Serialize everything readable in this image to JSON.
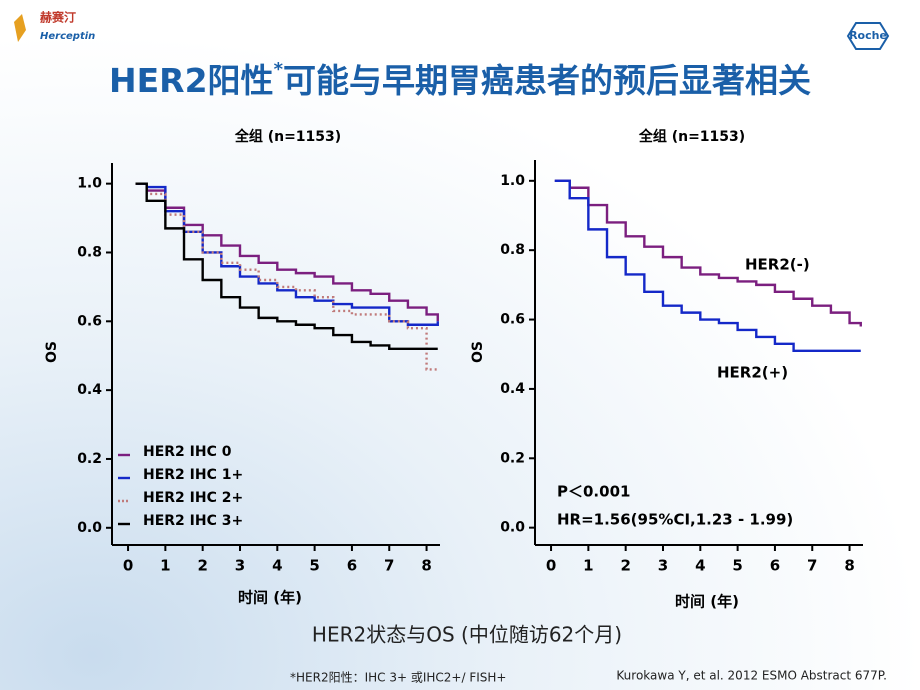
{
  "slide": {
    "title_main": "HER2阳性",
    "title_star": "*",
    "title_rest": "可能与早期胃癌患者的预后显著相关",
    "caption": "HER2状态与OS (中位随访62个月)",
    "footnote": "*HER2阳性：IHC 3+ 或IHC2+/ FISH+",
    "citation": "Kurokawa Y, et al. 2012 ESMO Abstract 677P.",
    "logo_cn": "赫赛汀",
    "logo_en": "Herceptin",
    "logo_roche": "Roche"
  },
  "chart_data": [
    {
      "type": "line",
      "step_style": "km",
      "title": "全组 (n=1153)",
      "x_label": "时间 (年)",
      "y_label": "OS",
      "legend": "lower left",
      "xlim": [
        -0.43,
        8.36
      ],
      "ylim": [
        -0.05,
        1.06
      ],
      "xticks": [
        0,
        1,
        2,
        3,
        4,
        5,
        6,
        7,
        8
      ],
      "yticks": [
        {
          "value": 0,
          "label": "0.0"
        },
        {
          "value": 0.2,
          "label": "0.2"
        },
        {
          "value": 0.4,
          "label": "0.4"
        },
        {
          "value": 0.6,
          "label": "0.6"
        },
        {
          "value": 0.8,
          "label": "0.8"
        },
        {
          "value": 1,
          "label": "1.0"
        }
      ],
      "x": [
        0.2,
        0.5,
        1,
        1.5,
        2,
        2.5,
        3,
        3.5,
        4,
        4.5,
        5,
        5.5,
        6,
        6.5,
        7,
        7.5,
        8,
        8.3
      ],
      "series": [
        {
          "name": "HER2 IHC 0",
          "color": "#7b1f7f",
          "line_style": "solid",
          "values": [
            1.0,
            0.98,
            0.93,
            0.88,
            0.85,
            0.82,
            0.79,
            0.77,
            0.75,
            0.74,
            0.73,
            0.71,
            0.69,
            0.68,
            0.66,
            0.64,
            0.62,
            0.6
          ]
        },
        {
          "name": "HER2 IHC 1+",
          "color": "#1428c8",
          "line_style": "solid",
          "values": [
            1.0,
            0.99,
            0.92,
            0.86,
            0.8,
            0.76,
            0.73,
            0.71,
            0.69,
            0.67,
            0.66,
            0.65,
            0.64,
            0.64,
            0.6,
            0.59,
            0.59,
            0.6
          ]
        },
        {
          "name": "HER2 IHC 2+",
          "color": "#c07a7a",
          "line_style": "dotted",
          "values": [
            1.0,
            0.97,
            0.91,
            0.86,
            0.8,
            0.77,
            0.75,
            0.72,
            0.7,
            0.69,
            0.67,
            0.63,
            0.62,
            0.62,
            0.6,
            0.58,
            0.46,
            0.46
          ]
        },
        {
          "name": "HER2 IHC 3+",
          "color": "#000000",
          "line_style": "solid",
          "values": [
            1.0,
            0.95,
            0.87,
            0.78,
            0.72,
            0.67,
            0.64,
            0.61,
            0.6,
            0.59,
            0.58,
            0.56,
            0.54,
            0.53,
            0.52,
            0.52,
            0.52,
            0.52
          ]
        }
      ]
    },
    {
      "type": "line",
      "step_style": "km",
      "title": "全组 (n=1153)",
      "x_label": "时间 (年)",
      "y_label": "OS",
      "legend": "direct",
      "xlim": [
        -0.43,
        8.36
      ],
      "ylim": [
        -0.05,
        1.06
      ],
      "xticks": [
        0,
        1,
        2,
        3,
        4,
        5,
        6,
        7,
        8
      ],
      "yticks": [
        {
          "value": 0,
          "label": "0.0"
        },
        {
          "value": 0.2,
          "label": "0.2"
        },
        {
          "value": 0.4,
          "label": "0.4"
        },
        {
          "value": 0.6,
          "label": "0.6"
        },
        {
          "value": 0.8,
          "label": "0.8"
        },
        {
          "value": 1,
          "label": "1.0"
        }
      ],
      "x": [
        0.1,
        0.5,
        1,
        1.5,
        2,
        2.5,
        3,
        3.5,
        4,
        4.5,
        5,
        5.5,
        6,
        6.5,
        7,
        7.5,
        8,
        8.3
      ],
      "series": [
        {
          "name": "HER2(-)",
          "color": "#7b1f7f",
          "line_style": "solid",
          "values": [
            1.0,
            0.98,
            0.93,
            0.88,
            0.84,
            0.81,
            0.78,
            0.75,
            0.73,
            0.72,
            0.71,
            0.7,
            0.68,
            0.66,
            0.64,
            0.62,
            0.59,
            0.58
          ]
        },
        {
          "name": "HER2(+)",
          "color": "#1428c8",
          "line_style": "solid",
          "values": [
            1.0,
            0.95,
            0.86,
            0.78,
            0.73,
            0.68,
            0.64,
            0.62,
            0.6,
            0.59,
            0.57,
            0.55,
            0.53,
            0.51,
            0.51,
            0.51,
            0.51,
            0.51
          ]
        }
      ],
      "annotations": [
        "P＜0.001",
        "HR=1.56(95%CI,1.23 - 1.99)"
      ]
    }
  ]
}
